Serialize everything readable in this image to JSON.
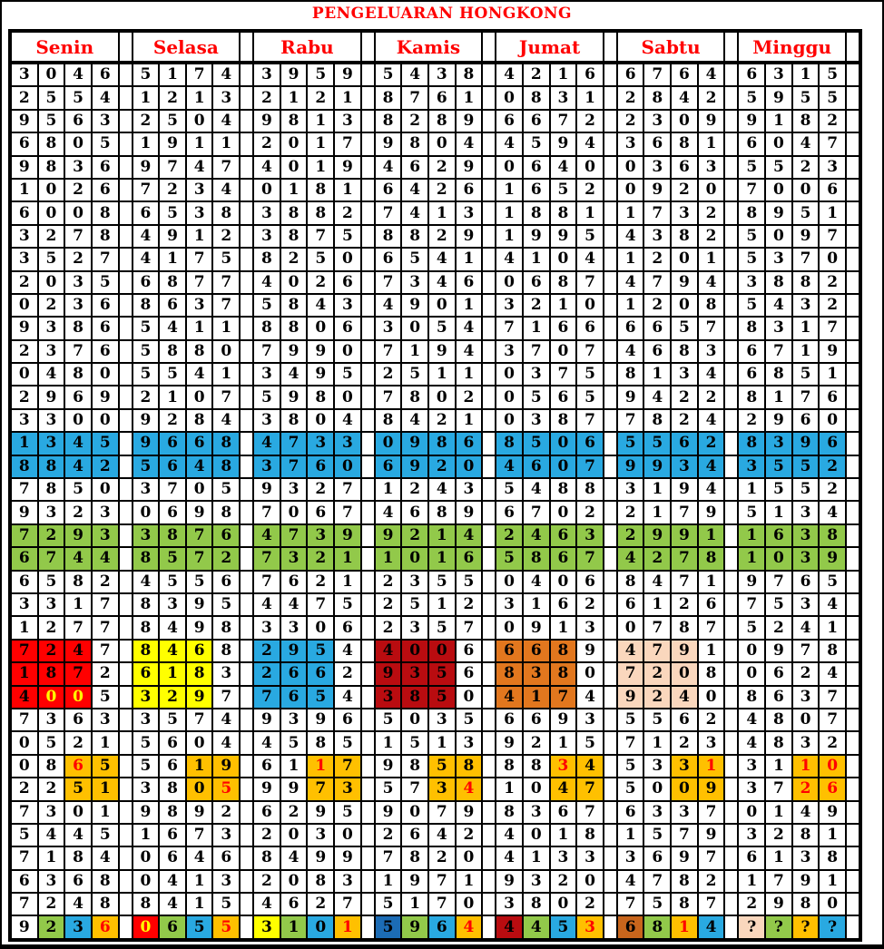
{
  "title": "PENGELUARAN HONGKONG",
  "days": [
    "Senin",
    "Selasa",
    "Rabu",
    "Kamis",
    "Jumat",
    "Sabtu",
    "Minggu"
  ],
  "palette": {
    "W": "#FFFFFF",
    "B": "#29A9E1",
    "G": "#92C94A",
    "R": "#FF0000",
    "Y": "#FFFF00",
    "D": "#B90C10",
    "O": "#E2771E",
    "P": "#FAD7BD",
    "A": "#FFC000",
    "N": "#1C6CB5",
    "C": "#C8651C"
  },
  "ink": {
    "K": "#000000",
    "R": "#FF0000",
    "Y": "#FFFF00"
  },
  "rows": [
    {
      "c": [
        "3046",
        "5174",
        "3959",
        "5438",
        "4216",
        "6764",
        "6315"
      ]
    },
    {
      "c": [
        "2554",
        "1213",
        "2121",
        "8761",
        "0831",
        "2842",
        "5955"
      ]
    },
    {
      "c": [
        "9563",
        "2504",
        "9813",
        "8289",
        "6672",
        "2309",
        "9182"
      ]
    },
    {
      "c": [
        "6805",
        "1911",
        "2017",
        "9804",
        "4594",
        "3681",
        "6047"
      ]
    },
    {
      "c": [
        "9836",
        "9747",
        "4019",
        "4629",
        "0640",
        "0363",
        "5523"
      ]
    },
    {
      "c": [
        "1026",
        "7234",
        "0181",
        "6426",
        "1652",
        "0920",
        "7006"
      ]
    },
    {
      "c": [
        "6008",
        "6538",
        "3882",
        "7413",
        "1881",
        "1732",
        "8951"
      ]
    },
    {
      "c": [
        "3278",
        "4912",
        "3875",
        "8829",
        "1995",
        "4382",
        "5097"
      ]
    },
    {
      "c": [
        "3527",
        "4175",
        "8250",
        "6541",
        "4104",
        "1201",
        "5370"
      ]
    },
    {
      "c": [
        "2035",
        "6877",
        "4026",
        "7346",
        "0687",
        "4794",
        "3882"
      ]
    },
    {
      "c": [
        "0236",
        "8637",
        "5843",
        "4901",
        "3210",
        "1208",
        "5432"
      ]
    },
    {
      "c": [
        "9386",
        "5411",
        "8806",
        "3054",
        "7166",
        "6657",
        "8317"
      ]
    },
    {
      "c": [
        "2376",
        "5880",
        "7990",
        "7194",
        "3707",
        "4683",
        "6719"
      ]
    },
    {
      "c": [
        "0480",
        "5541",
        "3495",
        "2511",
        "0375",
        "8134",
        "6851"
      ]
    },
    {
      "c": [
        "2969",
        "2107",
        "5980",
        "7802",
        "0565",
        "9422",
        "8176"
      ]
    },
    {
      "c": [
        "3300",
        "9284",
        "3804",
        "8421",
        "0387",
        "7824",
        "2960"
      ]
    },
    {
      "c": [
        "1345",
        "9668",
        "4733",
        "0986",
        "8506",
        "5562",
        "8396"
      ],
      "bg": [
        "BBBB",
        "BBBB",
        "BBBB",
        "BBBB",
        "BBBB",
        "BBBB",
        "BBBB"
      ]
    },
    {
      "c": [
        "8842",
        "5648",
        "3760",
        "6920",
        "4607",
        "9934",
        "3552"
      ],
      "bg": [
        "BBBB",
        "BBBB",
        "BBBB",
        "BBBB",
        "BBBB",
        "BBBB",
        "BBBB"
      ]
    },
    {
      "c": [
        "7850",
        "3705",
        "9327",
        "1243",
        "5488",
        "3194",
        "1552"
      ]
    },
    {
      "c": [
        "9323",
        "0698",
        "7067",
        "4689",
        "6702",
        "2179",
        "5134"
      ]
    },
    {
      "c": [
        "7293",
        "3876",
        "4739",
        "9214",
        "2463",
        "2991",
        "1638"
      ],
      "bg": [
        "GGGG",
        "GGGG",
        "GGGG",
        "GGGG",
        "GGGG",
        "GGGG",
        "GGGG"
      ]
    },
    {
      "c": [
        "6744",
        "8572",
        "7321",
        "1016",
        "5867",
        "4278",
        "1039"
      ],
      "bg": [
        "GGGG",
        "GGGG",
        "GGGG",
        "GGGG",
        "GGGG",
        "GGGG",
        "GGGG"
      ]
    },
    {
      "c": [
        "6582",
        "4556",
        "7621",
        "2355",
        "0406",
        "8471",
        "9765"
      ]
    },
    {
      "c": [
        "3317",
        "8395",
        "4475",
        "2512",
        "3162",
        "6126",
        "7534"
      ]
    },
    {
      "c": [
        "1277",
        "8498",
        "3306",
        "2357",
        "0913",
        "0787",
        "5241"
      ]
    },
    {
      "c": [
        "7247",
        "8468",
        "2954",
        "4006",
        "6689",
        "4791",
        "0978"
      ],
      "bg": [
        "RRRW",
        "YYYW",
        "BBBW",
        "DDDW",
        "OOOW",
        "PPPW",
        "WWWW"
      ]
    },
    {
      "c": [
        "1872",
        "6183",
        "2662",
        "9356",
        "8380",
        "7208",
        "0624"
      ],
      "bg": [
        "RRRW",
        "YYYW",
        "BBBW",
        "DDDW",
        "OOOW",
        "PPPW",
        "WWWW"
      ]
    },
    {
      "c": [
        "4005",
        "3297",
        "7654",
        "3850",
        "4174",
        "9240",
        "8637"
      ],
      "bg": [
        "RRRW",
        "YYYW",
        "BBBW",
        "DDDW",
        "OOOW",
        "PPPW",
        "WWWW"
      ],
      "fg": [
        "KYYK",
        "KKKK",
        "KKKK",
        "KKKK",
        "KKKK",
        "KKKK",
        "KKKK"
      ]
    },
    {
      "c": [
        "7363",
        "3574",
        "9396",
        "5035",
        "6693",
        "5562",
        "4807"
      ]
    },
    {
      "c": [
        "0521",
        "5604",
        "4585",
        "1513",
        "9215",
        "7123",
        "4832"
      ]
    },
    {
      "c": [
        "0865",
        "5619",
        "6117",
        "9858",
        "8834",
        "5331",
        "3110"
      ],
      "bg": [
        "WWAA",
        "WWAA",
        "WWAA",
        "WWAA",
        "WWAA",
        "WWAA",
        "WWAA"
      ],
      "fg": [
        "KKRK",
        "KKKK",
        "KKRK",
        "KKKK",
        "KKRK",
        "KKKR",
        "KKRR"
      ]
    },
    {
      "c": [
        "2251",
        "3805",
        "9973",
        "5734",
        "1047",
        "5009",
        "3726"
      ],
      "bg": [
        "WWAA",
        "WWAA",
        "WWAA",
        "WWAA",
        "WWAA",
        "WWAA",
        "WWAA"
      ],
      "fg": [
        "KKKK",
        "KKKR",
        "KKKK",
        "KKKR",
        "KKKK",
        "KKKK",
        "KKRR"
      ]
    },
    {
      "c": [
        "7301",
        "9892",
        "6295",
        "9079",
        "8367",
        "6337",
        "0149"
      ]
    },
    {
      "c": [
        "5445",
        "1673",
        "2030",
        "2642",
        "4018",
        "1579",
        "3281"
      ]
    },
    {
      "c": [
        "7184",
        "0646",
        "8499",
        "7820",
        "4133",
        "3697",
        "6138"
      ]
    },
    {
      "c": [
        "6368",
        "0413",
        "2083",
        "1971",
        "9320",
        "4782",
        "1791"
      ]
    },
    {
      "c": [
        "7248",
        "8415",
        "4627",
        "5170",
        "3802",
        "7587",
        "2980"
      ]
    },
    {
      "c": [
        "9236",
        "0655",
        "3101",
        "5964",
        "4453",
        "6814",
        "????"
      ],
      "bg": [
        "WGBA",
        "RGBA",
        "YGBA",
        "NGBA",
        "DGBA",
        "CGAB",
        "PGAB"
      ],
      "fg": [
        "KKKR",
        "YKKR",
        "KKKR",
        "KKKR",
        "KKKR",
        "KKRK",
        "KKKK"
      ]
    }
  ]
}
